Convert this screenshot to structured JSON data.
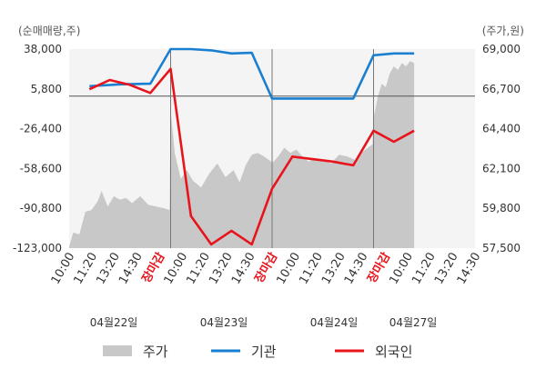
{
  "chart_data": {
    "type": "line",
    "left_axis_unit": "(순매매량,주)",
    "right_axis_unit": "(주가,원)",
    "left_ticks": [
      "38,000",
      "5,800",
      "-26,400",
      "-58,600",
      "-90,800",
      "-123,000"
    ],
    "left_tick_values": [
      38000,
      5800,
      -26400,
      -58600,
      -90800,
      -123000
    ],
    "right_ticks": [
      "69,000",
      "66,700",
      "64,400",
      "62,100",
      "59,800",
      "57,500"
    ],
    "right_tick_values": [
      69000,
      66700,
      64400,
      62100,
      59800,
      57500
    ],
    "left_ylim": [
      -123000,
      38000
    ],
    "right_ylim": [
      57500,
      69000
    ],
    "x_ticks": [
      "10:00",
      "11:20",
      "13:20",
      "14:30",
      "장마감",
      "10:00",
      "11:20",
      "13:20",
      "14:30",
      "장마감",
      "10:00",
      "11:20",
      "13:20",
      "14:30",
      "장마감",
      "10:00",
      "11:20",
      "13:20",
      "14:30"
    ],
    "x_tick_is_close": [
      false,
      false,
      false,
      false,
      true,
      false,
      false,
      false,
      false,
      true,
      false,
      false,
      false,
      false,
      true,
      false,
      false,
      false,
      false
    ],
    "dates": [
      "04월22일",
      "04월23일",
      "04월24일",
      "04월27일"
    ],
    "day_count": 4,
    "legend": [
      {
        "name": "주가",
        "color": "#c8c8c8",
        "kind": "area"
      },
      {
        "name": "기관",
        "color": "#1a7fd0",
        "kind": "line"
      },
      {
        "name": "외국인",
        "color": "#e8141c",
        "kind": "line"
      }
    ],
    "series": [
      {
        "name": "주가",
        "axis": "right",
        "color": "#c8c8c8",
        "points": [
          [
            0.0,
            57600
          ],
          [
            0.04,
            58400
          ],
          [
            0.1,
            58300
          ],
          [
            0.16,
            59600
          ],
          [
            0.22,
            59700
          ],
          [
            0.28,
            60200
          ],
          [
            0.32,
            60800
          ],
          [
            0.38,
            59900
          ],
          [
            0.44,
            60500
          ],
          [
            0.5,
            60300
          ],
          [
            0.56,
            60400
          ],
          [
            0.62,
            60100
          ],
          [
            0.7,
            60500
          ],
          [
            0.78,
            60000
          ],
          [
            0.86,
            59900
          ],
          [
            0.94,
            59800
          ],
          [
            0.99,
            59700
          ],
          [
            1.0,
            65500
          ],
          [
            1.04,
            63000
          ],
          [
            1.1,
            61500
          ],
          [
            1.16,
            62000
          ],
          [
            1.22,
            61400
          ],
          [
            1.3,
            61000
          ],
          [
            1.38,
            61800
          ],
          [
            1.46,
            62400
          ],
          [
            1.54,
            61600
          ],
          [
            1.62,
            62000
          ],
          [
            1.68,
            61300
          ],
          [
            1.74,
            62300
          ],
          [
            1.8,
            62900
          ],
          [
            1.86,
            63000
          ],
          [
            1.92,
            62800
          ],
          [
            1.99,
            62500
          ],
          [
            2.0,
            62400
          ],
          [
            2.06,
            62800
          ],
          [
            2.12,
            63300
          ],
          [
            2.18,
            63000
          ],
          [
            2.24,
            63200
          ],
          [
            2.3,
            62800
          ],
          [
            2.36,
            62500
          ],
          [
            2.42,
            62700
          ],
          [
            2.5,
            62600
          ],
          [
            2.58,
            62400
          ],
          [
            2.66,
            62900
          ],
          [
            2.74,
            62800
          ],
          [
            2.82,
            62600
          ],
          [
            2.9,
            63100
          ],
          [
            2.99,
            63500
          ],
          [
            3.0,
            65000
          ],
          [
            3.04,
            66200
          ],
          [
            3.08,
            67000
          ],
          [
            3.12,
            66800
          ],
          [
            3.16,
            67600
          ],
          [
            3.2,
            68000
          ],
          [
            3.24,
            67800
          ],
          [
            3.28,
            68200
          ],
          [
            3.32,
            68000
          ],
          [
            3.36,
            68300
          ],
          [
            3.4,
            68200
          ]
        ]
      },
      {
        "name": "기관",
        "axis": "left",
        "points": [
          [
            0.2,
            8000
          ],
          [
            0.5,
            9500
          ],
          [
            0.8,
            10000
          ],
          [
            1.0,
            38000
          ],
          [
            1.2,
            38000
          ],
          [
            1.4,
            37000
          ],
          [
            1.6,
            34500
          ],
          [
            1.8,
            35000
          ],
          [
            2.0,
            -2000
          ],
          [
            2.2,
            -2000
          ],
          [
            2.4,
            -2000
          ],
          [
            2.6,
            -2000
          ],
          [
            2.8,
            -2000
          ],
          [
            3.0,
            33000
          ],
          [
            3.2,
            34500
          ],
          [
            3.4,
            34500
          ]
        ]
      },
      {
        "name": "외국인",
        "axis": "left",
        "points": [
          [
            0.2,
            5500
          ],
          [
            0.4,
            13000
          ],
          [
            0.6,
            9000
          ],
          [
            0.8,
            2500
          ],
          [
            1.0,
            22000
          ],
          [
            1.2,
            -97000
          ],
          [
            1.4,
            -120000
          ],
          [
            1.6,
            -109000
          ],
          [
            1.8,
            -120000
          ],
          [
            2.0,
            -75000
          ],
          [
            2.2,
            -49000
          ],
          [
            2.4,
            -51000
          ],
          [
            2.6,
            -53000
          ],
          [
            2.8,
            -56000
          ],
          [
            3.0,
            -28000
          ],
          [
            3.2,
            -37000
          ],
          [
            3.4,
            -28000
          ]
        ]
      }
    ]
  }
}
